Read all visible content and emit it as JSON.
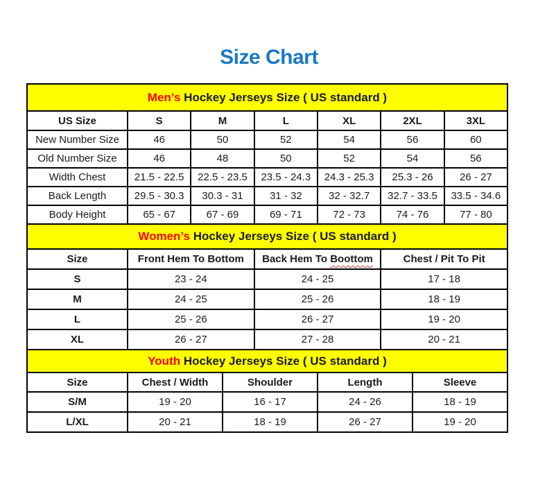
{
  "page": {
    "title": "Size Chart"
  },
  "colors": {
    "title_blue": "#1b78c4",
    "band_yellow": "#ffff00",
    "highlight_red": "#ff0000",
    "border_black": "#000000"
  },
  "tables": [
    {
      "id": "mens",
      "label_bold": false,
      "band": {
        "highlight": "Men’s",
        "rest": " Hockey Jerseys Size ( US standard )"
      },
      "headers": [
        "US Size",
        "S",
        "M",
        "L",
        "XL",
        "2XL",
        "3XL"
      ],
      "rows": [
        {
          "label": "New Number Size",
          "values": [
            "46",
            "50",
            "52",
            "54",
            "56",
            "60"
          ]
        },
        {
          "label": "Old Number Size",
          "values": [
            "46",
            "48",
            "50",
            "52",
            "54",
            "56"
          ]
        },
        {
          "label": "Width Chest",
          "values": [
            "21.5 - 22.5",
            "22.5 - 23.5",
            "23.5 - 24.3",
            "24.3 - 25.3",
            "25.3 - 26",
            "26 - 27"
          ]
        },
        {
          "label": "Back Length",
          "values": [
            "29.5 - 30.3",
            "30.3 - 31",
            "31 - 32",
            "32 - 32.7",
            "32.7 - 33.5",
            "33.5 - 34.6"
          ]
        },
        {
          "label": "Body Height",
          "values": [
            "65 - 67",
            "67 - 69",
            "69 - 71",
            "72 - 73",
            "74 - 76",
            "77 - 80"
          ]
        }
      ]
    },
    {
      "id": "women",
      "label_bold": true,
      "band": {
        "highlight": "Women’s",
        "rest": " Hockey Jerseys Size ( US standard )"
      },
      "headers": [
        "Size",
        "Front Hem To Bottom",
        {
          "pre": "Back Hem To ",
          "misspelled": "Boottom"
        },
        "Chest / Pit To Pit"
      ],
      "rows": [
        {
          "label": "S",
          "values": [
            "23 - 24",
            "24 - 25",
            "17 - 18"
          ]
        },
        {
          "label": "M",
          "values": [
            "24 - 25",
            "25 - 26",
            "18 - 19"
          ]
        },
        {
          "label": "L",
          "values": [
            "25 - 26",
            "26 - 27",
            "19 - 20"
          ]
        },
        {
          "label": "XL",
          "values": [
            "26 - 27",
            "27 - 28",
            "20 - 21"
          ]
        }
      ]
    },
    {
      "id": "youth",
      "label_bold": true,
      "band": {
        "highlight": "Youth",
        "rest": " Hockey Jerseys Size ( US standard )"
      },
      "headers": [
        "Size",
        "Chest / Width",
        "Shoulder",
        "Length",
        "Sleeve"
      ],
      "rows": [
        {
          "label": "S/M",
          "values": [
            "19 - 20",
            "16 - 17",
            "24 - 26",
            "18 - 19"
          ]
        },
        {
          "label": "L/XL",
          "values": [
            "20 - 21",
            "18 - 19",
            "26 - 27",
            "19 - 20"
          ]
        }
      ]
    }
  ]
}
